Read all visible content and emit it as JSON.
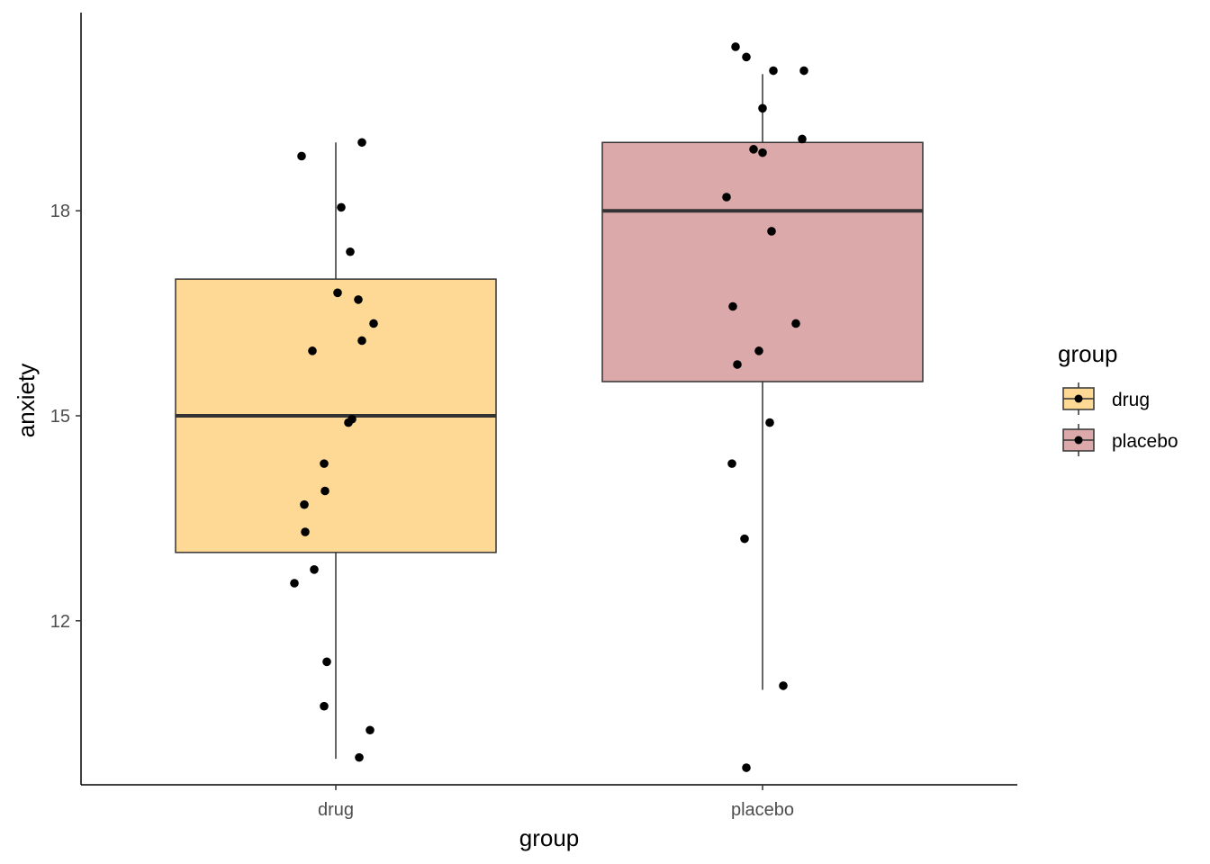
{
  "chart_data": {
    "type": "boxplot",
    "xlabel": "group",
    "ylabel": "anxiety",
    "categories": [
      "drug",
      "placebo"
    ],
    "y_ticks": [
      12,
      15,
      18
    ],
    "ylim": [
      9.6,
      20.9
    ],
    "grid": false,
    "legend_position": "right",
    "legend_title": "group",
    "colors": {
      "drug": "#fdd995",
      "placebo": "#dba9aa",
      "outline": "#333333",
      "point": "#000000"
    },
    "boxes": [
      {
        "group": "drug",
        "whisker_low": 9.98,
        "q1": 13.0,
        "median": 15.0,
        "q3": 17.0,
        "whisker_high": 19.0
      },
      {
        "group": "placebo",
        "whisker_low": 10.99,
        "q1": 15.5,
        "median": 18.0,
        "q3": 19.0,
        "whisker_high": 20.0
      }
    ],
    "points": [
      {
        "group": "drug",
        "values": [
          18.8,
          19.0,
          18.05,
          17.4,
          16.8,
          16.7,
          16.35,
          16.1,
          15.95,
          14.95,
          14.9,
          14.3,
          13.7,
          13.9,
          13.3,
          12.75,
          12.55,
          11.4,
          10.75,
          10.4,
          10.0
        ]
      },
      {
        "group": "placebo",
        "values": [
          20.4,
          20.25,
          20.05,
          20.05,
          19.5,
          19.05,
          18.9,
          18.85,
          18.2,
          17.7,
          16.6,
          16.35,
          15.95,
          15.75,
          14.9,
          14.3,
          13.2,
          11.05,
          9.85
        ]
      }
    ]
  }
}
